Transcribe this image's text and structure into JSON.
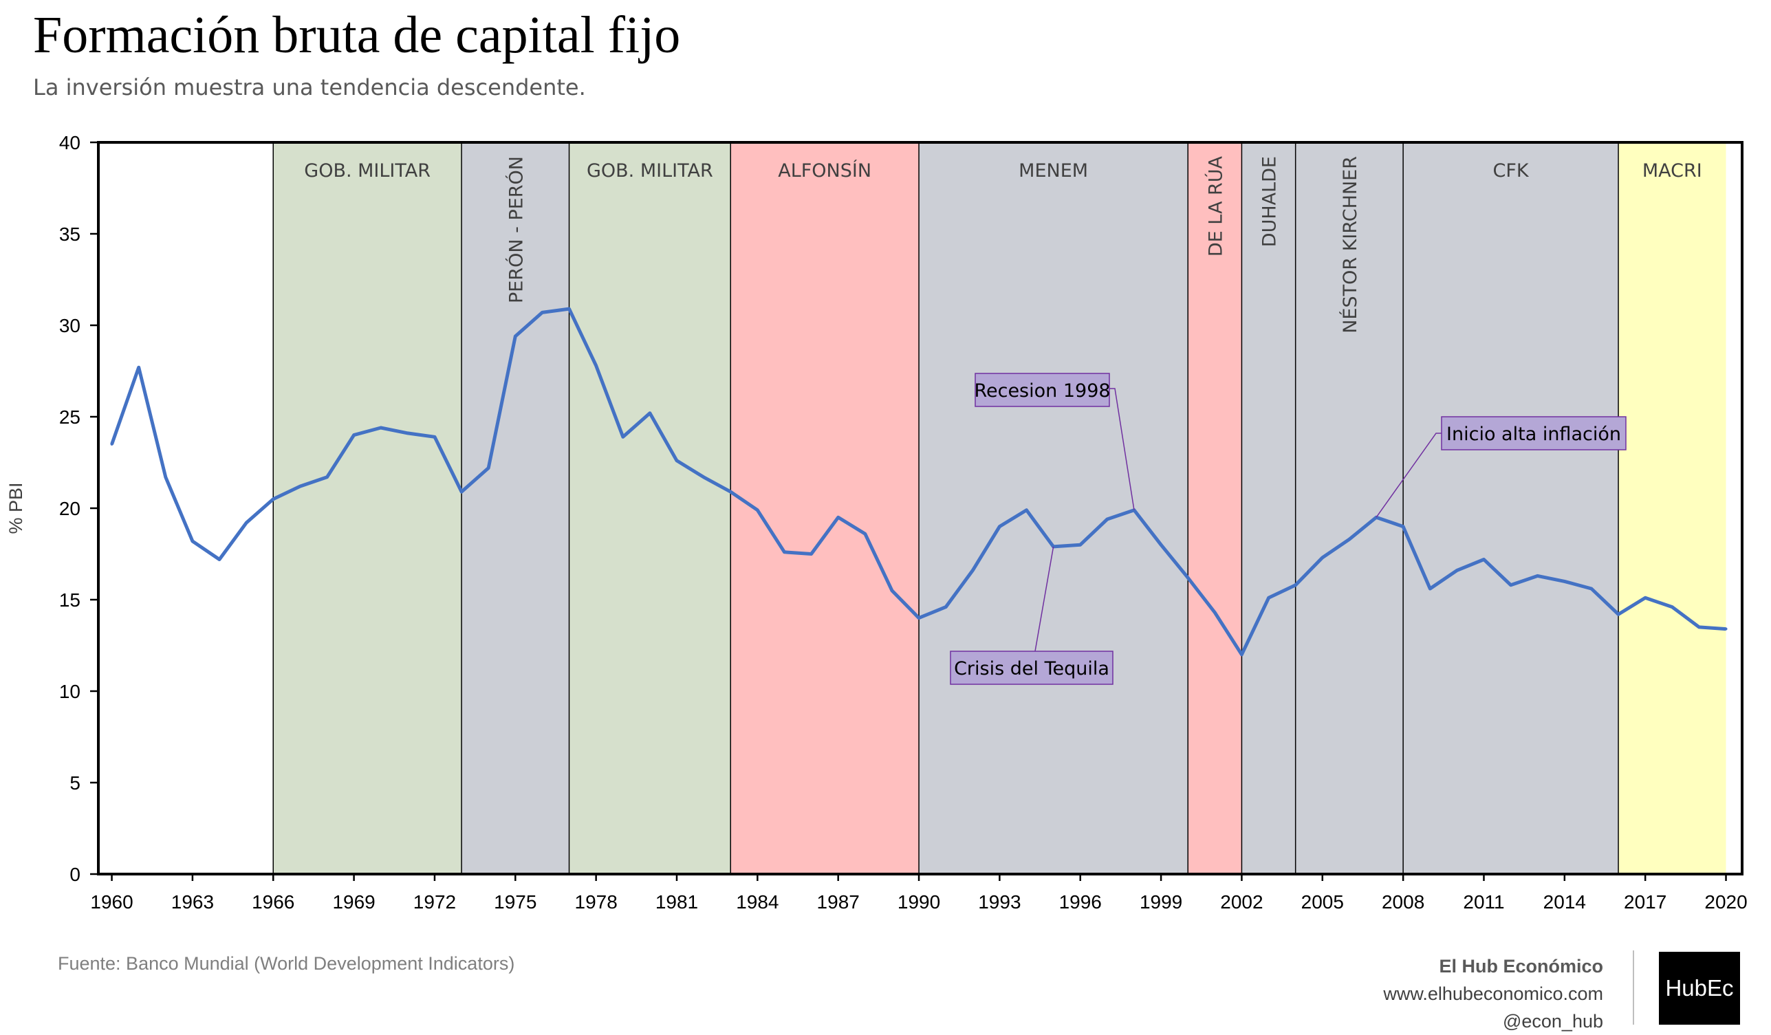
{
  "title": "Formación bruta de capital fijo",
  "subtitle": "La inversión muestra una tendencia descendente.",
  "source": "Fuente: Banco Mundial (World Development Indicators)",
  "brand": {
    "name": "El Hub Económico",
    "url": "www.elhubeconomico.com",
    "handle": "@econ_hub",
    "logo": "HubEc"
  },
  "chart_data": {
    "type": "line",
    "title": "Formación bruta de capital fijo",
    "subtitle": "La inversión muestra una tendencia descendente.",
    "xlabel": "",
    "ylabel": "% PBI",
    "xlim": [
      1959.5,
      2020.6
    ],
    "ylim": [
      0,
      40
    ],
    "yticks": [
      0,
      5,
      10,
      15,
      20,
      25,
      30,
      35,
      40
    ],
    "xticks": [
      1960,
      1963,
      1966,
      1969,
      1972,
      1975,
      1978,
      1981,
      1984,
      1987,
      1990,
      1993,
      1996,
      1999,
      2002,
      2005,
      2008,
      2011,
      2014,
      2017,
      2020
    ],
    "grid": false,
    "line_color": "#4472c4",
    "series": [
      {
        "name": "",
        "x": [
          1960,
          1961,
          1962,
          1963,
          1964,
          1965,
          1966,
          1967,
          1968,
          1969,
          1970,
          1971,
          1972,
          1973,
          1974,
          1975,
          1976,
          1977,
          1978,
          1979,
          1980,
          1981,
          1982,
          1983,
          1984,
          1985,
          1986,
          1987,
          1988,
          1989,
          1990,
          1991,
          1992,
          1993,
          1994,
          1995,
          1996,
          1997,
          1998,
          1999,
          2000,
          2001,
          2002,
          2003,
          2004,
          2005,
          2006,
          2007,
          2008,
          2009,
          2010,
          2011,
          2012,
          2013,
          2014,
          2015,
          2016,
          2017,
          2018,
          2019,
          2020
        ],
        "values": [
          23.5,
          27.7,
          21.7,
          18.2,
          17.2,
          19.2,
          20.5,
          21.2,
          21.7,
          24.0,
          24.4,
          24.1,
          23.9,
          20.9,
          22.2,
          29.4,
          30.7,
          30.9,
          27.8,
          23.9,
          25.2,
          22.6,
          21.7,
          20.9,
          19.9,
          17.6,
          17.5,
          19.5,
          18.6,
          15.5,
          14.0,
          14.6,
          16.6,
          19.0,
          19.9,
          17.9,
          18.0,
          19.4,
          19.9,
          18.0,
          16.2,
          14.3,
          12.0,
          15.1,
          15.8,
          17.3,
          18.3,
          19.5,
          19.0,
          15.6,
          16.6,
          17.2,
          15.8,
          16.3,
          16.0,
          15.6,
          14.2,
          15.1,
          14.6,
          13.5,
          13.4
        ]
      }
    ],
    "periods": [
      {
        "label": "",
        "start": 1959.5,
        "end": 1966,
        "color": "#ffffff",
        "vertical": false
      },
      {
        "label": "GOB. MILITAR",
        "start": 1966,
        "end": 1973,
        "color": "#d6e0cc",
        "vertical": false
      },
      {
        "label": "PERÓN - PERÓN",
        "start": 1973,
        "end": 1977,
        "color": "#cccfd6",
        "vertical": true
      },
      {
        "label": "GOB. MILITAR",
        "start": 1977,
        "end": 1983,
        "color": "#d6e0cc",
        "vertical": false
      },
      {
        "label": "ALFONSÍN",
        "start": 1983,
        "end": 1990,
        "color": "#ffbfbf",
        "vertical": false
      },
      {
        "label": "MENEM",
        "start": 1990,
        "end": 2000,
        "color": "#cccfd6",
        "vertical": false
      },
      {
        "label": "DE LA RÚA",
        "start": 2000,
        "end": 2002,
        "color": "#ffbfbf",
        "vertical": true
      },
      {
        "label": "DUHALDE",
        "start": 2002,
        "end": 2004,
        "color": "#cccfd6",
        "vertical": true
      },
      {
        "label": "NÉSTOR KIRCHNER",
        "start": 2004,
        "end": 2008,
        "color": "#cccfd6",
        "vertical": true
      },
      {
        "label": "CFK",
        "start": 2008,
        "end": 2016,
        "color": "#cccfd6",
        "vertical": false
      },
      {
        "label": "MACRI",
        "start": 2016,
        "end": 2020,
        "color": "#ffffbf",
        "vertical": false
      }
    ],
    "annotations": [
      {
        "text": "Recesion 1998",
        "x": 1998,
        "y": 19.9
      },
      {
        "text": "Crisis del Tequila",
        "x": 1995,
        "y": 17.9
      },
      {
        "text": "Inicio alta inflación",
        "x": 2007,
        "y": 19.5
      }
    ]
  }
}
